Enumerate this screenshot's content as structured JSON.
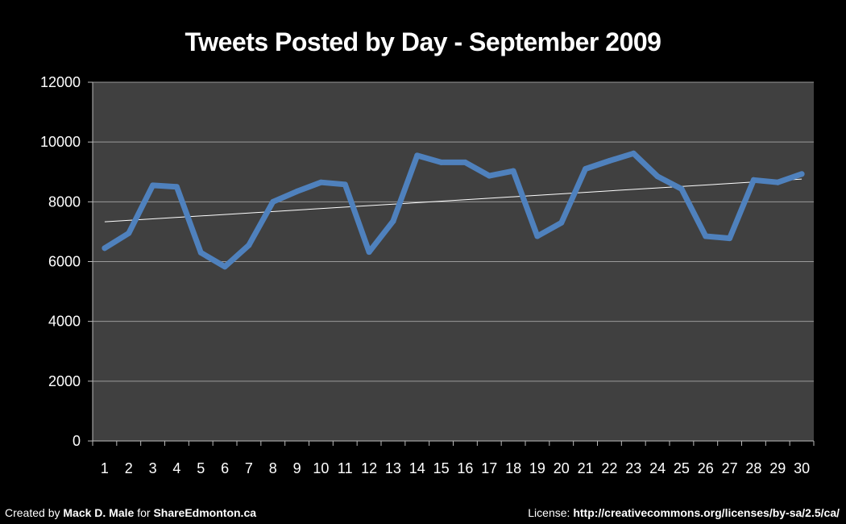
{
  "chart_data": {
    "type": "line",
    "title": "Tweets Posted by Day - September 2009",
    "xlabel": "",
    "ylabel": "",
    "ylim": [
      0,
      12000
    ],
    "yticks": [
      0,
      2000,
      4000,
      6000,
      8000,
      10000,
      12000
    ],
    "grid": true,
    "legend": "none",
    "categories": [
      "1",
      "2",
      "3",
      "4",
      "5",
      "6",
      "7",
      "8",
      "9",
      "10",
      "11",
      "12",
      "13",
      "14",
      "15",
      "16",
      "17",
      "18",
      "19",
      "20",
      "21",
      "22",
      "23",
      "24",
      "25",
      "26",
      "27",
      "28",
      "29",
      "30"
    ],
    "series": [
      {
        "values": [
          6450,
          6950,
          8550,
          8500,
          6300,
          5830,
          6550,
          8000,
          8350,
          8650,
          8580,
          6320,
          7350,
          9550,
          9320,
          9320,
          8870,
          9030,
          6850,
          7300,
          9100,
          9370,
          9620,
          8850,
          8430,
          6850,
          6780,
          8730,
          8650,
          8930
        ],
        "color": "#4f81bd"
      }
    ],
    "trendline": {
      "type": "linear",
      "start": 7330,
      "end": 8760,
      "color": "#ffffff"
    },
    "colors": {
      "background": "#000000",
      "plot_area": "#404040",
      "gridline": "#9a9a9a"
    }
  },
  "footer": {
    "left_prefix": "Created by ",
    "author": "Mack D. Male",
    "left_mid": " for ",
    "site": "ShareEdmonton.ca",
    "right_prefix": "License: ",
    "license_url": "http://creativecommons.org/licenses/by-sa/2.5/ca/"
  }
}
